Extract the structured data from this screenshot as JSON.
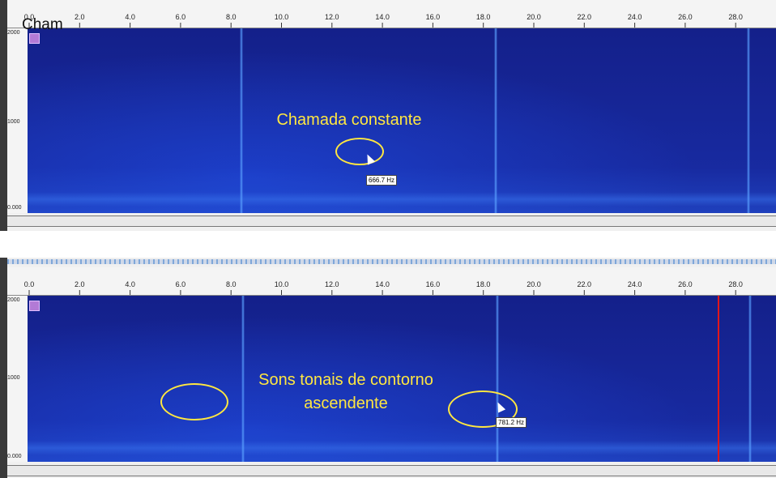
{
  "top_panel": {
    "x_ticks": [
      "0.0",
      "2.0",
      "4.0",
      "6.0",
      "8.0",
      "10.0",
      "12.0",
      "14.0",
      "16.0",
      "18.0",
      "20.0",
      "22.0",
      "24.0",
      "26.0",
      "28.0"
    ],
    "y_labels": {
      "top": "2000",
      "mid": "1000",
      "bottom": "0.000"
    },
    "partial_title": "Cham",
    "annotation": "Chamada constante",
    "hz_readout": "666.7 Hz"
  },
  "bottom_panel": {
    "x_ticks": [
      "0.0",
      "2.0",
      "4.0",
      "6.0",
      "8.0",
      "10.0",
      "12.0",
      "14.0",
      "16.0",
      "18.0",
      "20.0",
      "22.0",
      "24.0",
      "26.0",
      "28.0"
    ],
    "y_labels": {
      "top": "2000",
      "mid": "1000",
      "bottom": "0.000"
    },
    "annotation_line1": "Sons tonais de contorno",
    "annotation_line2": "ascendente",
    "hz_readout": "781.2 Hz"
  },
  "colors": {
    "annotation": "#ffe740",
    "spectrogram": "#14208a",
    "cursor_line": "#e2161a"
  }
}
